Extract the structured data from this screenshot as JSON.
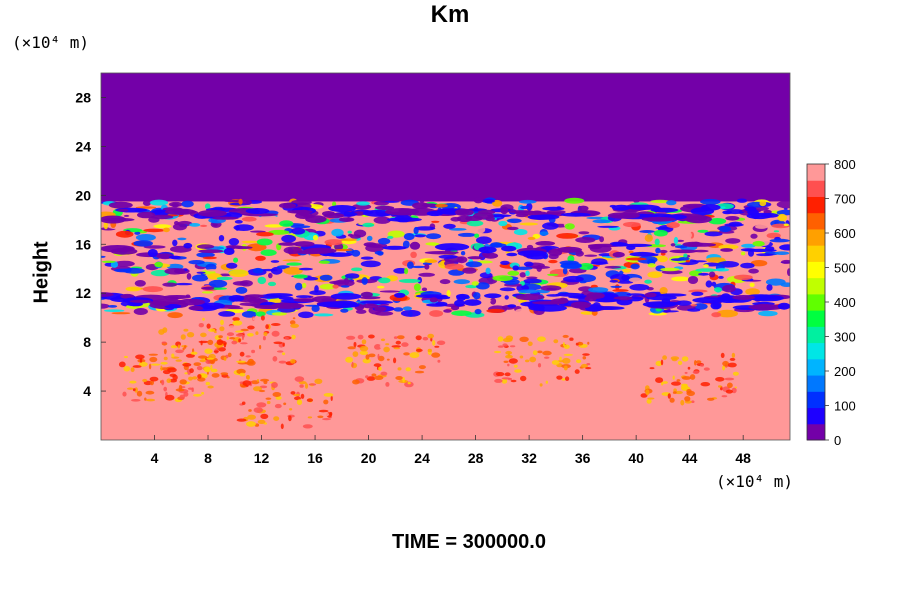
{
  "chart_data": {
    "type": "heatmap",
    "title": "Km",
    "ylabel": "Height",
    "x_unit": "(×10⁴ m)",
    "y_unit": "(×10⁴ m)",
    "footer": "TIME = 300000.0",
    "xlim": [
      0,
      51.5
    ],
    "ylim": [
      0,
      30
    ],
    "x_ticks": [
      4,
      8,
      12,
      16,
      20,
      24,
      28,
      32,
      36,
      40,
      44,
      48
    ],
    "y_ticks": [
      4,
      8,
      12,
      16,
      20,
      24,
      28
    ],
    "colorbar": {
      "min": 0,
      "max": 800,
      "ticks": [
        0,
        100,
        200,
        300,
        400,
        500,
        600,
        700,
        800
      ],
      "colors": [
        "#7300a8",
        "#1e00ff",
        "#0030ff",
        "#0078ff",
        "#00b4ff",
        "#00e6e6",
        "#00f0a0",
        "#00ff40",
        "#60ff00",
        "#c0ff00",
        "#ffff00",
        "#ffd000",
        "#ffa000",
        "#ff6000",
        "#ff2000",
        "#ff5050",
        "#ff9898"
      ]
    },
    "regions": {
      "upper_value": 0,
      "upper_from_height": 19.5,
      "lower_background_value": 800
    }
  }
}
